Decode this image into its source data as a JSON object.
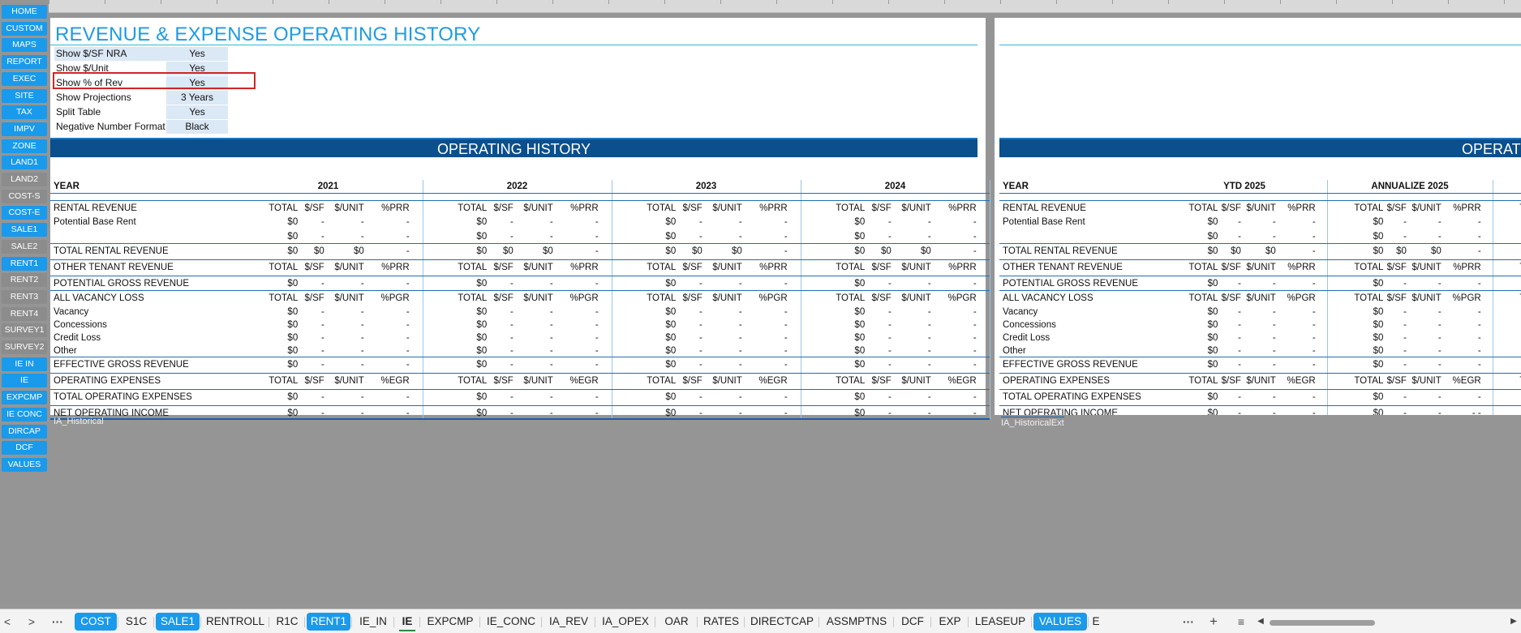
{
  "nav_buttons": [
    {
      "label": "HOME",
      "style": "blue"
    },
    {
      "label": "CUSTOM",
      "style": "blue"
    },
    {
      "label": "MAPS",
      "style": "blue"
    },
    {
      "label": "REPORT",
      "style": "blue"
    },
    {
      "label": "EXEC",
      "style": "blue"
    },
    {
      "label": "SITE",
      "style": "blue"
    },
    {
      "label": "TAX",
      "style": "blue"
    },
    {
      "label": "IMPV",
      "style": "blue"
    },
    {
      "label": "ZONE",
      "style": "blue"
    },
    {
      "label": "LAND1",
      "style": "blue"
    },
    {
      "label": "LAND2",
      "style": "grey"
    },
    {
      "label": "COST-S",
      "style": "grey"
    },
    {
      "label": "COST-E",
      "style": "blue"
    },
    {
      "label": "SALE1",
      "style": "blue"
    },
    {
      "label": "SALE2",
      "style": "grey"
    },
    {
      "label": "RENT1",
      "style": "blue"
    },
    {
      "label": "RENT2",
      "style": "grey"
    },
    {
      "label": "RENT3",
      "style": "grey"
    },
    {
      "label": "RENT4",
      "style": "grey"
    },
    {
      "label": "SURVEY1",
      "style": "grey"
    },
    {
      "label": "SURVEY2",
      "style": "grey"
    },
    {
      "label": "IE IN",
      "style": "blue"
    },
    {
      "label": "IE",
      "style": "blue"
    },
    {
      "label": "EXPCMP",
      "style": "blue"
    },
    {
      "label": "IE CONC",
      "style": "blue"
    },
    {
      "label": "DIRCAP",
      "style": "blue"
    },
    {
      "label": "DCF",
      "style": "blue"
    },
    {
      "label": "VALUES",
      "style": "blue"
    }
  ],
  "page_title": "REVENUE & EXPENSE OPERATING HISTORY",
  "options": [
    {
      "label": "Show $/SF NRA",
      "value": "Yes",
      "shaded": true
    },
    {
      "label": "Show $/Unit",
      "value": "Yes",
      "shaded": false
    },
    {
      "label": "Show % of Rev",
      "value": "Yes",
      "shaded": false
    },
    {
      "label": "Show Projections",
      "value": "3 Years",
      "shaded": false
    },
    {
      "label": "Split Table",
      "value": "Yes",
      "shaded": false
    },
    {
      "label": "Negative Number Format",
      "value": "Black",
      "shaded": false
    }
  ],
  "banner1": "OPERATING HISTORY",
  "banner2": "OPERATING",
  "year_label": "YEAR",
  "years1": [
    "2021",
    "2022",
    "2023",
    "2024"
  ],
  "years2": [
    "YTD 2025",
    "ANNUALIZE 2025"
  ],
  "rows": [
    {
      "type": "header",
      "label": "RENTAL REVENUE",
      "pct": "%PRR",
      "bold_cols": true
    },
    {
      "type": "data",
      "label": "Potential Base Rent",
      "total": "$0",
      "psf": "-",
      "unit": "-",
      "pct": "-"
    },
    {
      "type": "data",
      "label": "",
      "total": "$0",
      "psf": "-",
      "unit": "-",
      "pct": "-"
    },
    {
      "type": "gap"
    },
    {
      "type": "subtotal",
      "label": "TOTAL RENTAL REVENUE",
      "total": "$0",
      "psf": "$0",
      "unit": "$0",
      "pct": "-"
    },
    {
      "type": "header",
      "label": "OTHER TENANT REVENUE",
      "pct": "%PRR"
    },
    {
      "type": "subtotal",
      "label": "POTENTIAL GROSS REVENUE",
      "total": "$0",
      "psf": "-",
      "unit": "-",
      "pct": "-"
    },
    {
      "type": "header",
      "label": "ALL VACANCY LOSS",
      "pct": "%PGR"
    },
    {
      "type": "data",
      "label": "Vacancy",
      "total": "$0",
      "psf": "-",
      "unit": "-",
      "pct": "-"
    },
    {
      "type": "data",
      "label": "Concessions",
      "total": "$0",
      "psf": "-",
      "unit": "-",
      "pct": "-"
    },
    {
      "type": "data",
      "label": "Credit Loss",
      "total": "$0",
      "psf": "-",
      "unit": "-",
      "pct": "-"
    },
    {
      "type": "data",
      "label": "Other",
      "total": "$0",
      "psf": "-",
      "unit": "-",
      "pct": "-"
    },
    {
      "type": "subtotal",
      "label": "EFFECTIVE GROSS REVENUE",
      "total": "$0",
      "psf": "-",
      "unit": "-",
      "pct": "-"
    },
    {
      "type": "header",
      "label": "OPERATING EXPENSES",
      "pct": "%EGR"
    },
    {
      "type": "subtotal",
      "label": "TOTAL OPERATING EXPENSES",
      "total": "$0",
      "psf": "-",
      "unit": "-",
      "pct": "-"
    },
    {
      "type": "subtotal",
      "label": "NET OPERATING INCOME",
      "total": "$0",
      "psf": "-",
      "unit": "-",
      "pct": "-"
    }
  ],
  "col_headers": {
    "total": "TOTAL",
    "psf": "$/SF",
    "unit": "$/UNIT"
  },
  "sheet_label1": "IA_Historical",
  "sheet_label2": "IA_HistoricalExt",
  "noi_annualize_pct": "- -",
  "tab_controls": {
    "prev": "<",
    "next": ">",
    "more_left": "···",
    "more_right": "···",
    "add": "+",
    "list": "≡",
    "scroll_left": "◀",
    "scroll_right": "▶"
  },
  "tabs": [
    {
      "label": "COST",
      "style": "blue"
    },
    {
      "label": "S1C",
      "style": "plain"
    },
    {
      "label": "SALE1",
      "style": "blue"
    },
    {
      "label": "RENTROLL",
      "style": "plain"
    },
    {
      "label": "R1C",
      "style": "plain"
    },
    {
      "label": "RENT1",
      "style": "blue"
    },
    {
      "label": "IE_IN",
      "style": "plain"
    },
    {
      "label": "IE",
      "style": "active"
    },
    {
      "label": "EXPCMP",
      "style": "plain"
    },
    {
      "label": "IE_CONC",
      "style": "plain"
    },
    {
      "label": "IA_REV",
      "style": "plain"
    },
    {
      "label": "IA_OPEX",
      "style": "plain"
    },
    {
      "label": "OAR",
      "style": "plain"
    },
    {
      "label": "RATES",
      "style": "plain"
    },
    {
      "label": "DIRECTCAP",
      "style": "plain"
    },
    {
      "label": "ASSMPTNS",
      "style": "plain"
    },
    {
      "label": "DCF",
      "style": "plain"
    },
    {
      "label": "EXP",
      "style": "plain"
    },
    {
      "label": "LEASEUP",
      "style": "plain"
    },
    {
      "label": "VALUES",
      "style": "blue"
    },
    {
      "label": "E",
      "style": "plain"
    }
  ]
}
